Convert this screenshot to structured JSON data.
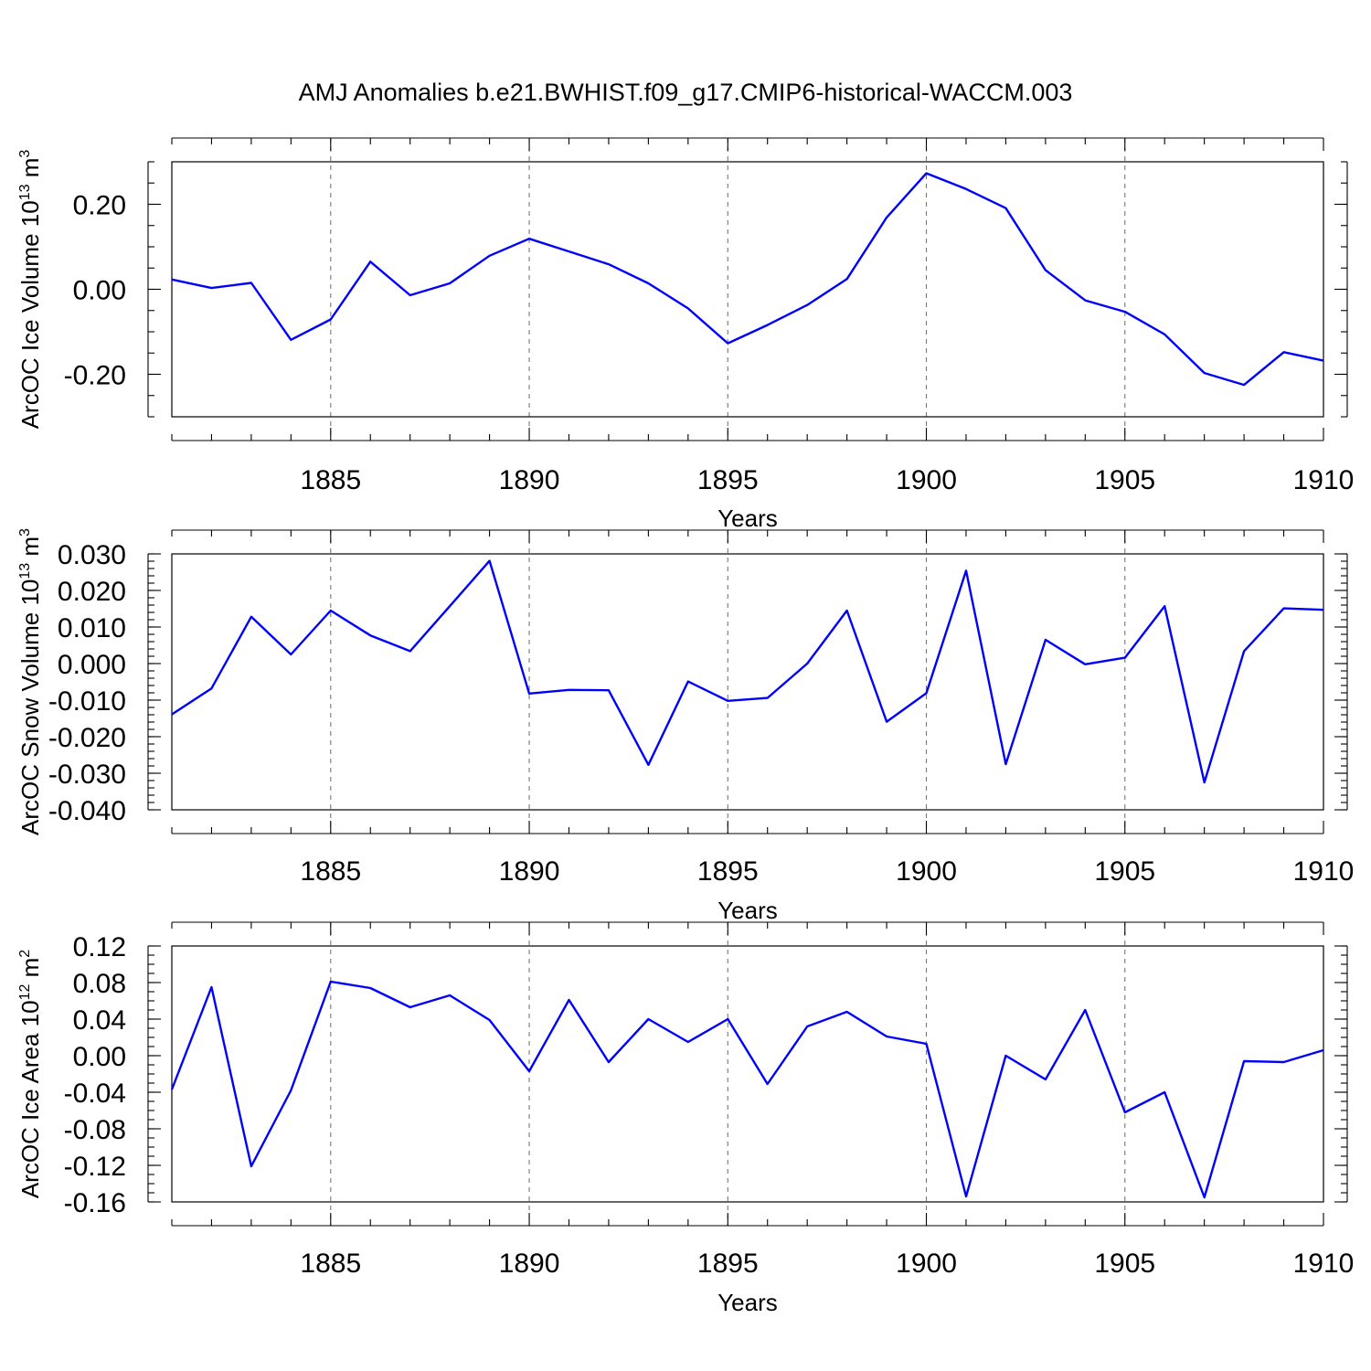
{
  "title": "AMJ Anomalies b.e21.BWHIST.f09_g17.CMIP6-historical-WACCM.003",
  "line_color": "#0000ff",
  "chart_data": [
    {
      "type": "line",
      "ylabel_main": "ArcOC Ice Volume 10",
      "ylabel_exp": "13",
      "ylabel_unit": "m",
      "ylabel_unit_exp": "3",
      "xlabel": "Years",
      "xlim": [
        1881,
        1910
      ],
      "ylim": [
        -0.3,
        0.3
      ],
      "yticks": [
        -0.2,
        0.0,
        0.2
      ],
      "ytick_labels": [
        "-0.20",
        "0.00",
        "0.20"
      ],
      "yminor_step": 0.05,
      "xticks": [
        1885,
        1890,
        1895,
        1900,
        1905,
        1910
      ],
      "xtick_labels": [
        "1885",
        "1890",
        "1895",
        "1900",
        "1905",
        "1910"
      ],
      "grid_x": [
        1885,
        1890,
        1895,
        1900,
        1905
      ],
      "x": [
        1881,
        1882,
        1883,
        1884,
        1885,
        1886,
        1887,
        1888,
        1889,
        1890,
        1891,
        1892,
        1893,
        1894,
        1895,
        1896,
        1897,
        1898,
        1899,
        1900,
        1901,
        1902,
        1903,
        1904,
        1905,
        1906,
        1907,
        1908,
        1909,
        1910
      ],
      "values": [
        0.023,
        0.003,
        0.015,
        -0.119,
        -0.071,
        0.065,
        -0.014,
        0.014,
        0.079,
        0.119,
        0.089,
        0.059,
        0.014,
        -0.045,
        -0.127,
        -0.084,
        -0.037,
        0.024,
        0.169,
        0.273,
        0.236,
        0.191,
        0.045,
        -0.026,
        -0.053,
        -0.106,
        -0.197,
        -0.225,
        -0.148,
        -0.168
      ]
    },
    {
      "type": "line",
      "ylabel_main": "ArcOC Snow Volume 10",
      "ylabel_exp": "13",
      "ylabel_unit": "m",
      "ylabel_unit_exp": "3",
      "xlabel": "Years",
      "xlim": [
        1881,
        1910
      ],
      "ylim": [
        -0.04,
        0.03
      ],
      "yticks": [
        -0.04,
        -0.03,
        -0.02,
        -0.01,
        0.0,
        0.01,
        0.02,
        0.03
      ],
      "ytick_labels": [
        "-0.040",
        "-0.030",
        "-0.020",
        "-0.010",
        "0.000",
        "0.010",
        "0.020",
        "0.030"
      ],
      "yminor_step": 0.002,
      "xticks": [
        1885,
        1890,
        1895,
        1900,
        1905,
        1910
      ],
      "xtick_labels": [
        "1885",
        "1890",
        "1895",
        "1900",
        "1905",
        "1910"
      ],
      "grid_x": [
        1885,
        1890,
        1895,
        1900,
        1905
      ],
      "x": [
        1881,
        1882,
        1883,
        1884,
        1885,
        1886,
        1887,
        1888,
        1889,
        1890,
        1891,
        1892,
        1893,
        1894,
        1895,
        1896,
        1897,
        1898,
        1899,
        1900,
        1901,
        1902,
        1903,
        1904,
        1905,
        1906,
        1907,
        1908,
        1909,
        1910
      ],
      "values": [
        -0.0139,
        -0.0068,
        0.0128,
        0.0025,
        0.0145,
        0.0077,
        0.0034,
        0.0157,
        0.0281,
        -0.0082,
        -0.0072,
        -0.0073,
        -0.0277,
        -0.0049,
        -0.0102,
        -0.0094,
        0.0,
        0.0145,
        -0.0159,
        -0.0081,
        0.0254,
        -0.0275,
        0.0065,
        -0.0002,
        0.0016,
        0.0157,
        -0.0325,
        0.0034,
        0.0151,
        0.0147
      ]
    },
    {
      "type": "line",
      "ylabel_main": "ArcOC Ice Area 10",
      "ylabel_exp": "12",
      "ylabel_unit": "m",
      "ylabel_unit_exp": "2",
      "xlabel": "Years",
      "xlim": [
        1881,
        1910
      ],
      "ylim": [
        -0.16,
        0.12
      ],
      "yticks": [
        -0.16,
        -0.12,
        -0.08,
        -0.04,
        0.0,
        0.04,
        0.08,
        0.12
      ],
      "ytick_labels": [
        "-0.16",
        "-0.12",
        "-0.08",
        "-0.04",
        "0.00",
        "0.04",
        "0.08",
        "0.12"
      ],
      "yminor_step": 0.01,
      "xticks": [
        1885,
        1890,
        1895,
        1900,
        1905,
        1910
      ],
      "xtick_labels": [
        "1885",
        "1890",
        "1895",
        "1900",
        "1905",
        "1910"
      ],
      "grid_x": [
        1885,
        1890,
        1895,
        1900,
        1905
      ],
      "x": [
        1881,
        1882,
        1883,
        1884,
        1885,
        1886,
        1887,
        1888,
        1889,
        1890,
        1891,
        1892,
        1893,
        1894,
        1895,
        1896,
        1897,
        1898,
        1899,
        1900,
        1901,
        1902,
        1903,
        1904,
        1905,
        1906,
        1907,
        1908,
        1909,
        1910
      ],
      "values": [
        -0.037,
        0.075,
        -0.121,
        -0.038,
        0.081,
        0.074,
        0.053,
        0.066,
        0.039,
        -0.017,
        0.061,
        -0.007,
        0.04,
        0.015,
        0.04,
        -0.031,
        0.032,
        0.048,
        0.021,
        0.013,
        -0.154,
        0.0,
        -0.026,
        0.05,
        -0.062,
        -0.04,
        -0.155,
        -0.006,
        -0.007,
        0.006
      ]
    }
  ]
}
